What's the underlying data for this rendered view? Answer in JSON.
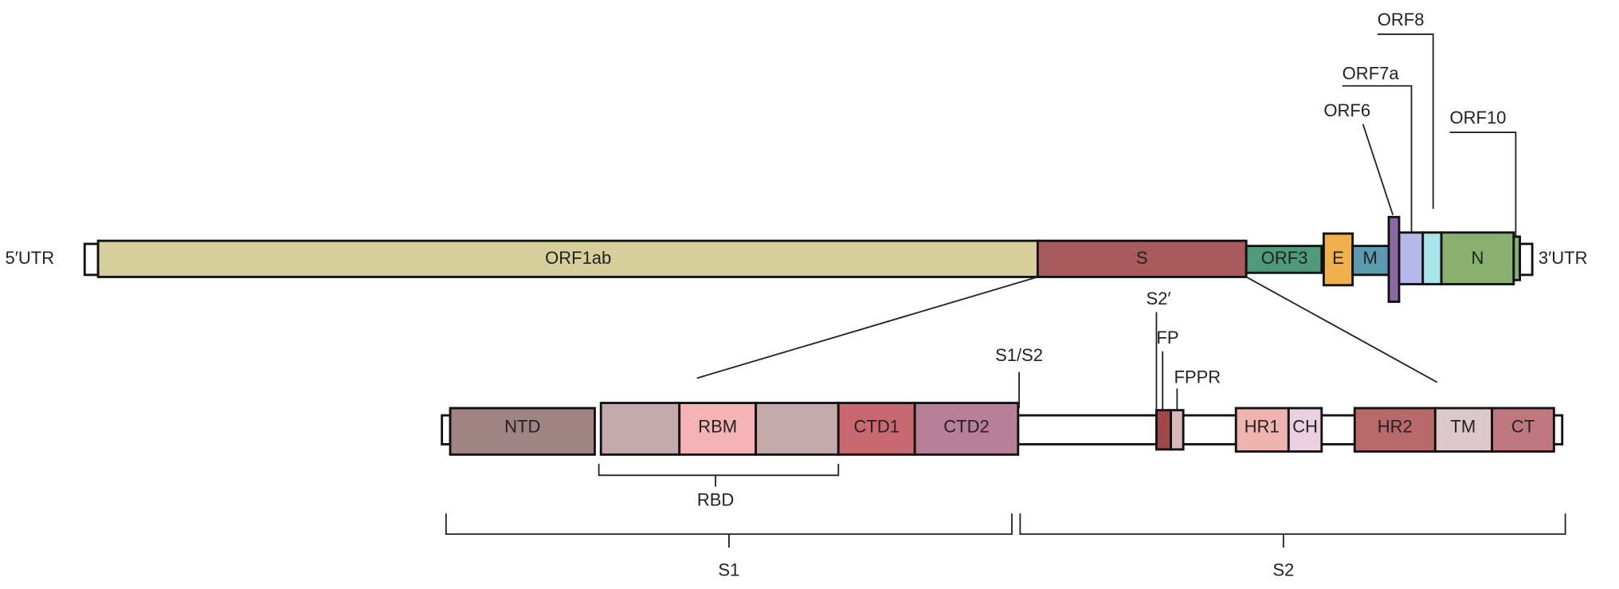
{
  "genome": {
    "five_utr": "5′UTR",
    "three_utr": "3′UTR",
    "genes": [
      "ORF1ab",
      "S",
      "ORF3",
      "E",
      "M",
      "N"
    ],
    "callouts": [
      "ORF6",
      "ORF7a",
      "ORF8",
      "ORF10"
    ]
  },
  "spike": {
    "domains": [
      "NTD",
      "RBM",
      "CTD1",
      "CTD2",
      "HR1",
      "CH",
      "HR2",
      "TM",
      "CT"
    ],
    "sites": [
      "S1/S2",
      "S2′",
      "FP",
      "FPPR"
    ],
    "regions": [
      "RBD",
      "S1",
      "S2"
    ]
  }
}
